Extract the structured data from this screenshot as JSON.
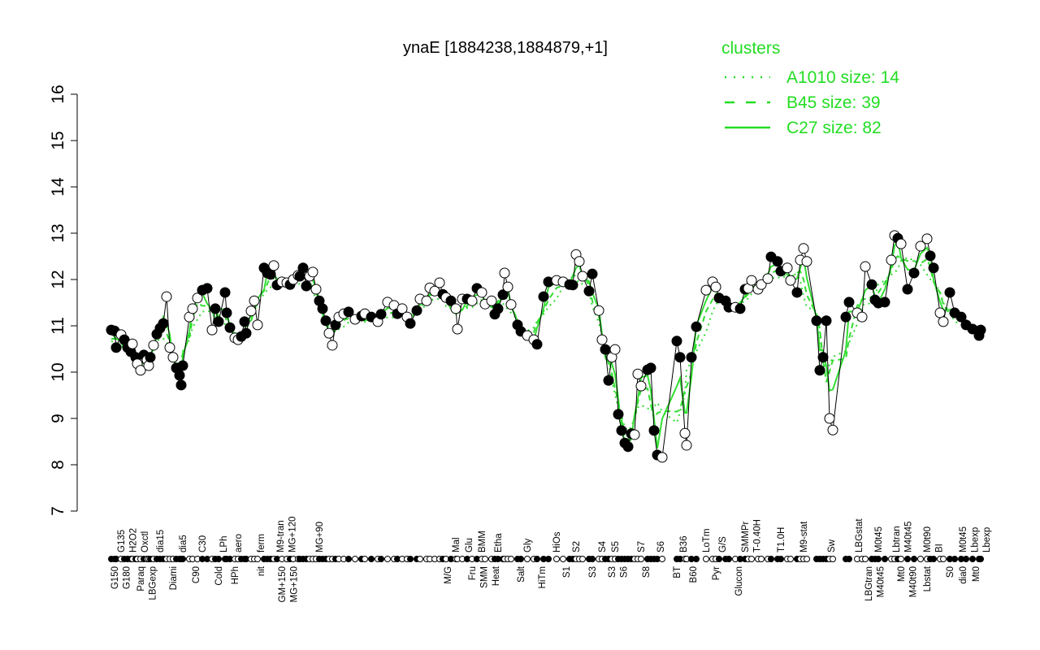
{
  "chart_data": {
    "type": "line",
    "title": "ynaE [1884238,1884879,+1]",
    "xlabel": "",
    "ylabel": "",
    "ylim": [
      7,
      16
    ],
    "xlim": [
      -10.5,
      269.5
    ],
    "yticks": [
      "7",
      "8",
      "9",
      "10",
      "11",
      "12",
      "13",
      "14",
      "15",
      "16"
    ],
    "legend": {
      "title": "clusters",
      "placement": "top-right",
      "entries": [
        {
          "label": "A1010 size: 14",
          "style": "dotted"
        },
        {
          "label": "B45 size: 39",
          "style": "dashed"
        },
        {
          "label": "C27 size: 82",
          "style": "solid"
        }
      ]
    },
    "colors": {
      "line": "#33dd33",
      "legend": "#22dd22",
      "point": "#000000"
    },
    "points": [
      [
        0,
        10.91,
        1
      ],
      [
        1,
        10.89,
        1
      ],
      [
        1.5,
        10.53,
        1
      ],
      [
        3,
        10.81,
        0
      ],
      [
        4,
        10.7,
        1
      ],
      [
        5,
        10.53,
        1
      ],
      [
        6,
        10.44,
        1
      ],
      [
        6.5,
        10.61,
        0
      ],
      [
        7.5,
        10.32,
        1
      ],
      [
        8,
        10.18,
        0
      ],
      [
        9,
        10.04,
        0
      ],
      [
        10,
        10.37,
        1
      ],
      [
        11,
        10.26,
        0
      ],
      [
        11.5,
        10.14,
        0
      ],
      [
        12,
        10.32,
        1
      ],
      [
        13,
        10.58,
        0
      ],
      [
        14,
        10.82,
        1
      ],
      [
        15,
        10.95,
        1
      ],
      [
        16,
        11.05,
        1
      ],
      [
        17,
        11.63,
        0
      ],
      [
        18,
        10.53,
        0
      ],
      [
        19,
        10.32,
        0
      ],
      [
        20,
        10.09,
        1
      ],
      [
        21,
        9.93,
        1
      ],
      [
        21.5,
        9.72,
        1
      ],
      [
        22,
        10.14,
        1
      ],
      [
        24,
        11.19,
        0
      ],
      [
        25,
        11.37,
        0
      ],
      [
        26.5,
        11.6,
        0
      ],
      [
        28,
        11.77,
        1
      ],
      [
        29.5,
        11.81,
        1
      ],
      [
        31,
        10.91,
        0
      ],
      [
        32,
        11.37,
        1
      ],
      [
        33,
        11.09,
        1
      ],
      [
        35,
        11.72,
        1
      ],
      [
        35.5,
        11.28,
        1
      ],
      [
        36.5,
        10.96,
        1
      ],
      [
        38,
        10.74,
        0
      ],
      [
        39,
        10.7,
        0
      ],
      [
        40,
        10.77,
        1
      ],
      [
        41,
        11.09,
        1
      ],
      [
        41.5,
        10.84,
        1
      ],
      [
        43,
        11.32,
        0
      ],
      [
        44,
        11.54,
        0
      ],
      [
        45,
        11.02,
        0
      ],
      [
        47,
        12.25,
        1
      ],
      [
        48,
        12.14,
        1
      ],
      [
        49,
        12.11,
        1
      ],
      [
        50,
        12.3,
        0
      ],
      [
        51,
        11.88,
        1
      ],
      [
        52.5,
        11.95,
        0
      ],
      [
        54,
        11.93,
        0
      ],
      [
        55,
        11.89,
        1
      ],
      [
        56,
        12.0,
        0
      ],
      [
        57.5,
        12.09,
        0
      ],
      [
        58,
        12.07,
        1
      ],
      [
        59,
        12.25,
        1
      ],
      [
        60,
        11.86,
        1
      ],
      [
        61,
        12.07,
        0
      ],
      [
        62,
        12.16,
        0
      ],
      [
        63,
        11.79,
        0
      ],
      [
        64,
        11.54,
        1
      ],
      [
        65,
        11.37,
        1
      ],
      [
        66,
        11.11,
        1
      ],
      [
        67,
        10.84,
        0
      ],
      [
        68,
        10.58,
        0
      ],
      [
        69,
        11.02,
        1
      ],
      [
        70,
        11.19,
        0
      ],
      [
        71.5,
        11.26,
        0
      ],
      [
        73,
        11.3,
        1
      ],
      [
        75,
        11.14,
        0
      ],
      [
        77,
        11.21,
        1
      ],
      [
        78,
        11.26,
        0
      ],
      [
        80,
        11.19,
        1
      ],
      [
        82,
        11.09,
        0
      ],
      [
        83,
        11.25,
        1
      ],
      [
        85,
        11.51,
        0
      ],
      [
        87,
        11.44,
        0
      ],
      [
        88,
        11.26,
        1
      ],
      [
        89.5,
        11.37,
        0
      ],
      [
        91,
        11.19,
        0
      ],
      [
        92,
        11.05,
        1
      ],
      [
        94,
        11.33,
        1
      ],
      [
        95,
        11.58,
        0
      ],
      [
        97,
        11.54,
        0
      ],
      [
        98,
        11.82,
        0
      ],
      [
        99.5,
        11.75,
        0
      ],
      [
        101,
        11.93,
        0
      ],
      [
        102,
        11.68,
        1
      ],
      [
        103,
        11.61,
        0
      ],
      [
        104.5,
        11.54,
        1
      ],
      [
        106,
        11.37,
        0
      ],
      [
        106.5,
        10.93,
        0
      ],
      [
        108,
        11.58,
        0
      ],
      [
        109.5,
        11.58,
        1
      ],
      [
        111,
        11.54,
        0
      ],
      [
        112.5,
        11.81,
        1
      ],
      [
        114,
        11.72,
        0
      ],
      [
        115,
        11.47,
        0
      ],
      [
        117,
        11.54,
        0
      ],
      [
        118,
        11.25,
        1
      ],
      [
        119,
        11.37,
        1
      ],
      [
        120.5,
        11.67,
        1
      ],
      [
        121,
        12.14,
        0
      ],
      [
        122,
        11.84,
        0
      ],
      [
        123,
        11.46,
        0
      ],
      [
        125,
        11.02,
        1
      ],
      [
        126,
        10.88,
        1
      ],
      [
        128,
        10.79,
        0
      ],
      [
        130,
        10.7,
        0
      ],
      [
        131,
        10.6,
        1
      ],
      [
        133,
        11.63,
        1
      ],
      [
        134.5,
        11.95,
        1
      ],
      [
        137,
        11.98,
        0
      ],
      [
        139,
        11.95,
        0
      ],
      [
        141,
        11.89,
        1
      ],
      [
        142,
        11.88,
        1
      ],
      [
        143,
        12.54,
        0
      ],
      [
        144,
        12.39,
        0
      ],
      [
        145,
        12.07,
        0
      ],
      [
        147,
        11.75,
        1
      ],
      [
        148,
        12.12,
        1
      ],
      [
        150,
        11.33,
        0
      ],
      [
        151,
        10.7,
        0
      ],
      [
        152,
        10.49,
        1
      ],
      [
        153,
        9.82,
        1
      ],
      [
        154,
        10.32,
        0
      ],
      [
        155,
        10.49,
        0
      ],
      [
        156,
        9.09,
        1
      ],
      [
        157,
        8.74,
        1
      ],
      [
        158,
        8.47,
        1
      ],
      [
        159,
        8.39,
        1
      ],
      [
        160,
        8.67,
        1
      ],
      [
        161,
        8.65,
        0
      ],
      [
        162,
        9.96,
        0
      ],
      [
        163,
        9.7,
        0
      ],
      [
        165,
        10.05,
        1
      ],
      [
        166,
        10.09,
        1
      ],
      [
        167,
        8.74,
        1
      ],
      [
        168,
        8.21,
        1
      ],
      [
        169.5,
        8.16,
        0
      ],
      [
        174,
        10.67,
        1
      ],
      [
        175,
        10.32,
        1
      ],
      [
        176.5,
        8.68,
        0
      ],
      [
        177,
        8.42,
        0
      ],
      [
        178.5,
        10.32,
        1
      ],
      [
        180,
        10.98,
        1
      ],
      [
        183,
        11.77,
        0
      ],
      [
        185,
        11.95,
        0
      ],
      [
        186,
        11.84,
        0
      ],
      [
        187,
        11.6,
        1
      ],
      [
        189,
        11.54,
        1
      ],
      [
        190,
        11.4,
        1
      ],
      [
        192,
        11.4,
        0
      ],
      [
        193.5,
        11.37,
        1
      ],
      [
        195,
        11.79,
        1
      ],
      [
        196,
        11.81,
        0
      ],
      [
        197,
        11.98,
        0
      ],
      [
        199,
        11.79,
        0
      ],
      [
        200,
        11.89,
        0
      ],
      [
        202,
        12.02,
        0
      ],
      [
        203,
        12.49,
        1
      ],
      [
        205,
        12.39,
        1
      ],
      [
        206,
        12.18,
        1
      ],
      [
        208,
        12.25,
        0
      ],
      [
        209,
        11.98,
        0
      ],
      [
        211,
        11.72,
        1
      ],
      [
        212,
        12.42,
        0
      ],
      [
        213,
        12.67,
        0
      ],
      [
        214,
        12.39,
        0
      ],
      [
        217,
        11.11,
        1
      ],
      [
        218,
        10.04,
        1
      ],
      [
        219,
        10.32,
        1
      ],
      [
        220,
        11.11,
        1
      ],
      [
        221,
        9.0,
        0
      ],
      [
        222,
        8.75,
        0
      ],
      [
        226,
        11.19,
        1
      ],
      [
        227,
        11.51,
        1
      ],
      [
        229.5,
        11.28,
        0
      ],
      [
        231,
        11.19,
        0
      ],
      [
        232,
        12.28,
        0
      ],
      [
        234,
        11.89,
        1
      ],
      [
        235,
        11.56,
        1
      ],
      [
        236,
        11.49,
        1
      ],
      [
        238,
        11.51,
        1
      ],
      [
        240,
        12.42,
        0
      ],
      [
        241,
        12.95,
        0
      ],
      [
        242,
        12.89,
        1
      ],
      [
        243,
        12.77,
        0
      ],
      [
        245,
        11.79,
        1
      ],
      [
        247,
        12.14,
        1
      ],
      [
        249,
        12.72,
        0
      ],
      [
        251,
        12.88,
        0
      ],
      [
        252,
        12.51,
        1
      ],
      [
        253,
        12.25,
        1
      ],
      [
        255,
        11.28,
        0
      ],
      [
        256,
        11.09,
        0
      ],
      [
        258,
        11.72,
        1
      ],
      [
        259.5,
        11.28,
        1
      ],
      [
        261.5,
        11.19,
        1
      ],
      [
        263,
        11.02,
        1
      ],
      [
        265,
        10.93,
        1
      ],
      [
        267,
        10.79,
        1
      ],
      [
        267.5,
        10.91,
        1
      ]
    ],
    "x_labels_bottom": [
      [
        "G150",
        1
      ],
      [
        "G180",
        4.5
      ],
      [
        "Paraq",
        9
      ],
      [
        "LBGexp",
        12
      ],
      [
        "Diami",
        19
      ],
      [
        "C90",
        26
      ],
      [
        "Cold",
        33
      ],
      [
        "HPh",
        38
      ],
      [
        "nit",
        46
      ],
      [
        "GM+150",
        52.5
      ],
      [
        "MG+150",
        54
      ],
      [
        "M/G",
        103.5
      ],
      [
        "Fru",
        111
      ],
      [
        "SMM",
        114.5
      ],
      [
        "Heat",
        117
      ],
      [
        "Salt",
        126
      ],
      [
        "HiTm",
        132.5
      ],
      [
        "S1",
        140
      ],
      [
        "S3",
        148
      ],
      [
        "S3",
        154
      ],
      [
        "S6",
        157
      ],
      [
        "S8",
        164.5
      ],
      [
        "BT",
        174
      ],
      [
        "B60",
        179
      ],
      [
        "Pyr",
        186
      ],
      [
        "Glucon",
        193
      ],
      [
        "LBGtran",
        233
      ],
      [
        "M40t45",
        236
      ],
      [
        "Mt0",
        243
      ],
      [
        "M40t90",
        245
      ],
      [
        "Lbstat",
        251
      ],
      [
        "S0",
        258
      ],
      [
        "dia0",
        262
      ],
      [
        "Mt0",
        266
      ]
    ],
    "x_labels_top": [
      [
        "G135",
        3
      ],
      [
        "H2O2",
        6.5
      ],
      [
        "Oxctl",
        10
      ],
      [
        "dia15",
        15
      ],
      [
        "dia5",
        22
      ],
      [
        "C30",
        28
      ],
      [
        "LPh",
        34.5
      ],
      [
        "aero",
        39
      ],
      [
        "ferm",
        46
      ],
      [
        "M9-tran",
        52
      ],
      [
        "MG+120",
        55
      ],
      [
        "MG+90",
        64
      ],
      [
        "Mal",
        106
      ],
      [
        "Glu",
        110
      ],
      [
        "BMM",
        114
      ],
      [
        "Etha",
        119
      ],
      [
        "Gly",
        128
      ],
      [
        "HiOs",
        137
      ],
      [
        "S2",
        143
      ],
      [
        "S4",
        151
      ],
      [
        "S5",
        155
      ],
      [
        "S7",
        163
      ],
      [
        "S6",
        169
      ],
      [
        "B36",
        176
      ],
      [
        "LoTm",
        183
      ],
      [
        "G/S",
        188
      ],
      [
        "SMMPr",
        195
      ],
      [
        "T-0.40H",
        198
      ],
      [
        "T1.0H",
        206
      ],
      [
        "M9-stat",
        213
      ],
      [
        "Sw",
        221.5
      ],
      [
        "LBGstat",
        230
      ],
      [
        "M0t45",
        236
      ],
      [
        "Lbtran",
        241.5
      ],
      [
        "M40t45",
        244.5
      ],
      [
        "M0t90",
        251
      ],
      [
        "BI",
        254.5
      ],
      [
        "M0t45",
        262
      ],
      [
        "Lbexp",
        265
      ],
      [
        "Lbexp",
        267
      ]
    ]
  }
}
